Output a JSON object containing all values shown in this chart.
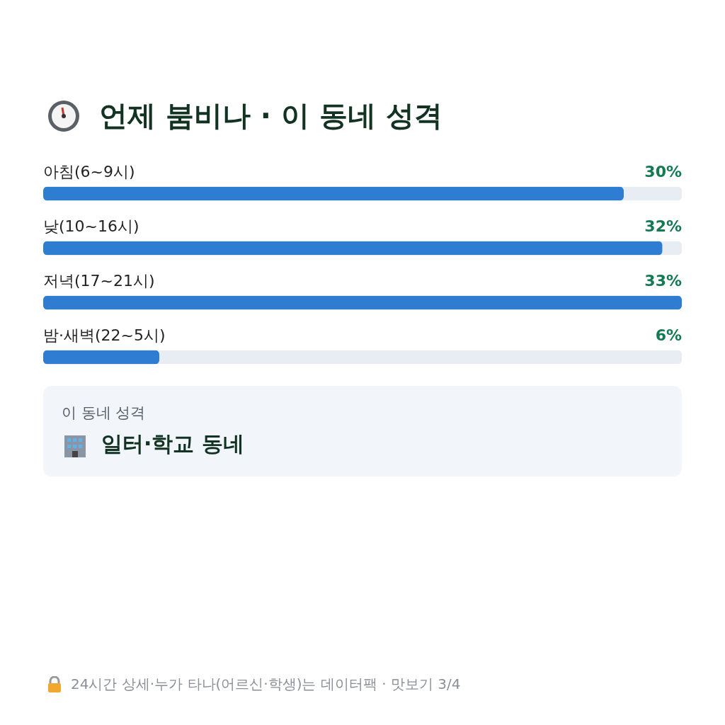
{
  "chart_data": {
    "type": "bar",
    "orientation": "horizontal",
    "title": "언제 붐비나 · 이 동네 성격",
    "categories": [
      "아침(6~9시)",
      "낮(10~16시)",
      "저녁(17~21시)",
      "밤·새벽(22~5시)"
    ],
    "values": [
      30,
      32,
      33,
      6
    ],
    "color": "#2f7dd3",
    "value_labels": [
      "30%",
      "32%",
      "33%",
      "6%"
    ],
    "xlim": [
      0,
      33
    ],
    "tick_labels": "y",
    "annotations": [
      "이 동네 성격",
      "일터·학교 동네",
      "24시간 상세·누가 타나(어르신·학생)는 데이터팩 · 맛보기 3/4"
    ]
  }
}
